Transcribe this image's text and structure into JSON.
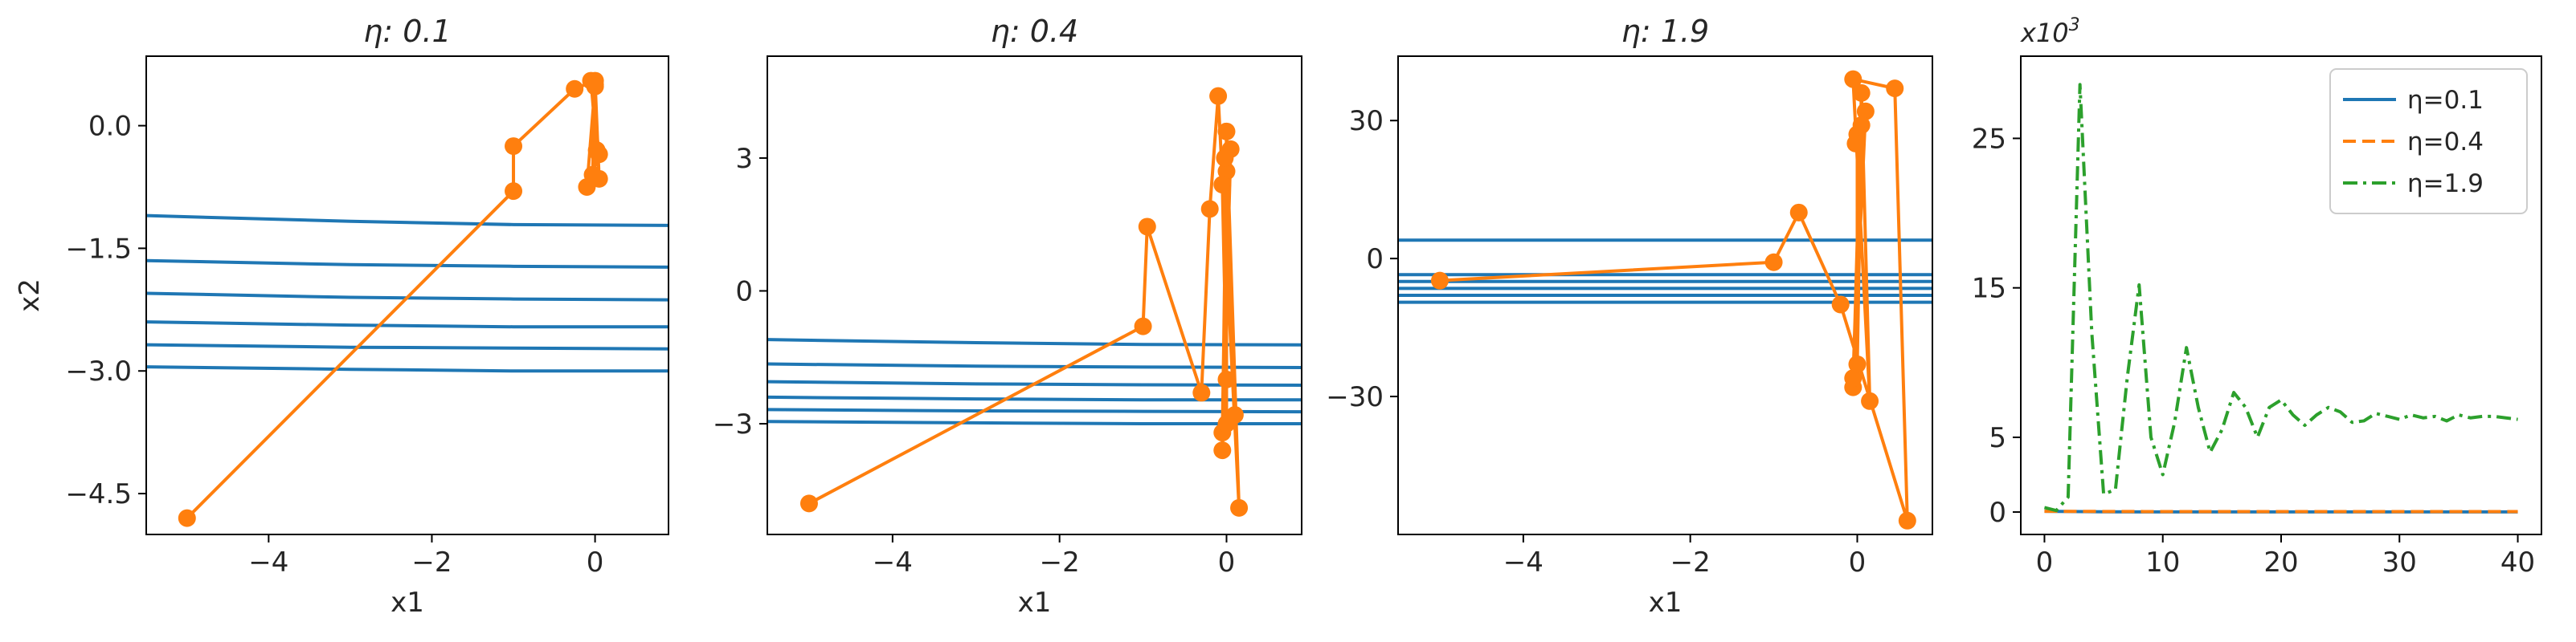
{
  "colors": {
    "contour": "#1f77b4",
    "trajectory": "#ff7f0e",
    "eta_0_1": "#1f77b4",
    "eta_0_4": "#ff7f0e",
    "eta_1_9": "#2ca02c",
    "axis": "#000000"
  },
  "chart_data": [
    {
      "type": "line",
      "title": "η: 0.1",
      "xlabel": "x1",
      "ylabel": "x2",
      "xlim": [
        -5.5,
        0.9
      ],
      "ylim": [
        -5.0,
        0.85
      ],
      "xticks": [
        -4,
        -2,
        0
      ],
      "xtick_labels": [
        "−4",
        "−2",
        "0"
      ],
      "yticks": [
        0.0,
        -1.5,
        -3.0,
        -4.5
      ],
      "ytick_labels": [
        "0.0",
        "−1.5",
        "−3.0",
        "−4.5"
      ],
      "contours": [
        {
          "x": [
            -5.5,
            -3,
            -1,
            0.9
          ],
          "y": [
            -1.1,
            -1.17,
            -1.21,
            -1.22
          ]
        },
        {
          "x": [
            -5.5,
            -3,
            -1,
            0.9
          ],
          "y": [
            -1.65,
            -1.7,
            -1.72,
            -1.73
          ]
        },
        {
          "x": [
            -5.5,
            -3,
            -1,
            0.9
          ],
          "y": [
            -2.05,
            -2.1,
            -2.12,
            -2.13
          ]
        },
        {
          "x": [
            -5.5,
            -3,
            -1,
            0.9
          ],
          "y": [
            -2.4,
            -2.44,
            -2.46,
            -2.46
          ]
        },
        {
          "x": [
            -5.5,
            -3,
            -1,
            0.9
          ],
          "y": [
            -2.68,
            -2.71,
            -2.72,
            -2.73
          ]
        },
        {
          "x": [
            -5.5,
            -3,
            -1,
            0.9
          ],
          "y": [
            -2.95,
            -2.98,
            -3.0,
            -3.0
          ]
        }
      ],
      "trajectory": {
        "x": [
          -5.0,
          -1.0,
          -1.0,
          -0.25,
          0.0,
          0.05,
          -0.05,
          0.05,
          -0.1,
          0.0,
          0.02,
          -0.03,
          0.0
        ],
        "y": [
          -4.8,
          -0.8,
          -0.25,
          0.45,
          0.55,
          -0.65,
          0.55,
          -0.35,
          -0.75,
          0.5,
          -0.3,
          -0.6,
          0.48
        ]
      }
    },
    {
      "type": "line",
      "title": "η: 0.4",
      "xlabel": "x1",
      "ylabel": "",
      "xlim": [
        -5.5,
        0.9
      ],
      "ylim": [
        -5.5,
        5.3
      ],
      "xticks": [
        -4,
        -2,
        0
      ],
      "xtick_labels": [
        "−4",
        "−2",
        "0"
      ],
      "yticks": [
        3,
        0,
        -3
      ],
      "ytick_labels": [
        "3",
        "0",
        "−3"
      ],
      "contours": [
        {
          "x": [
            -5.5,
            -3,
            -1,
            0.9
          ],
          "y": [
            -1.1,
            -1.17,
            -1.21,
            -1.22
          ]
        },
        {
          "x": [
            -5.5,
            -3,
            -1,
            0.9
          ],
          "y": [
            -1.65,
            -1.7,
            -1.72,
            -1.73
          ]
        },
        {
          "x": [
            -5.5,
            -3,
            -1,
            0.9
          ],
          "y": [
            -2.05,
            -2.1,
            -2.12,
            -2.13
          ]
        },
        {
          "x": [
            -5.5,
            -3,
            -1,
            0.9
          ],
          "y": [
            -2.4,
            -2.44,
            -2.46,
            -2.46
          ]
        },
        {
          "x": [
            -5.5,
            -3,
            -1,
            0.9
          ],
          "y": [
            -2.68,
            -2.71,
            -2.72,
            -2.73
          ]
        },
        {
          "x": [
            -5.5,
            -3,
            -1,
            0.9
          ],
          "y": [
            -2.95,
            -2.98,
            -3.0,
            -3.0
          ]
        }
      ],
      "trajectory": {
        "x": [
          -5.0,
          -1.0,
          -0.95,
          -0.3,
          -0.2,
          -0.1,
          0.15,
          0.0,
          -0.05,
          0.05,
          -0.05,
          0.0,
          0.0,
          -0.02,
          0.1,
          -0.05,
          0.0
        ],
        "y": [
          -4.8,
          -0.8,
          1.45,
          -2.3,
          1.85,
          4.4,
          -4.9,
          3.6,
          -3.6,
          3.2,
          -3.2,
          2.7,
          -3.0,
          3.0,
          -2.8,
          2.4,
          -2.0
        ]
      }
    },
    {
      "type": "line",
      "title": "η: 1.9",
      "xlabel": "x1",
      "ylabel": "",
      "xlim": [
        -5.5,
        0.9
      ],
      "ylim": [
        -60,
        44
      ],
      "xticks": [
        -4,
        -2,
        0
      ],
      "xtick_labels": [
        "−4",
        "−2",
        "0"
      ],
      "yticks": [
        30,
        0,
        -30
      ],
      "ytick_labels": [
        "30",
        "0",
        "−30"
      ],
      "contours": [
        {
          "x": [
            -5.5,
            0.9
          ],
          "y": [
            4,
            4
          ]
        },
        {
          "x": [
            -5.5,
            0.9
          ],
          "y": [
            -3.5,
            -3.5
          ]
        },
        {
          "x": [
            -5.5,
            0.9
          ],
          "y": [
            -5,
            -5
          ]
        },
        {
          "x": [
            -5.5,
            0.9
          ],
          "y": [
            -6.5,
            -6.5
          ]
        },
        {
          "x": [
            -5.5,
            0.9
          ],
          "y": [
            -8,
            -8
          ]
        },
        {
          "x": [
            -5.5,
            0.9
          ],
          "y": [
            -9.5,
            -9.5
          ]
        }
      ],
      "trajectory": {
        "x": [
          -5.0,
          -1.0,
          -0.7,
          -0.2,
          0.6,
          0.45,
          -0.05,
          0.15,
          0.05,
          -0.05,
          0.1,
          -0.05,
          0.05,
          0.0,
          0.0,
          -0.02
        ],
        "y": [
          -4.8,
          -0.8,
          10,
          -10,
          -57,
          37,
          39,
          -31,
          36,
          -28,
          32,
          -26,
          29,
          -23,
          27,
          25
        ]
      }
    },
    {
      "type": "line",
      "title": "",
      "xlabel": "",
      "ylabel": "",
      "offset_label": "x10",
      "offset_exponent": "3",
      "xlim": [
        -2,
        42
      ],
      "ylim": [
        -1.5,
        30.5
      ],
      "xticks": [
        0,
        10,
        20,
        30,
        40
      ],
      "xtick_labels": [
        "0",
        "10",
        "20",
        "30",
        "40"
      ],
      "yticks": [
        0,
        5,
        15,
        25
      ],
      "ytick_labels": [
        "0",
        "5",
        "15",
        "25"
      ],
      "legend_position": "upper right",
      "series": [
        {
          "name": "η=0.1",
          "style": "solid",
          "x": [
            0,
            5,
            10,
            15,
            20,
            25,
            30,
            35,
            40
          ],
          "y": [
            0.05,
            0.02,
            0.01,
            0.01,
            0.01,
            0.01,
            0.01,
            0.01,
            0.01
          ]
        },
        {
          "name": "η=0.4",
          "style": "dashed",
          "x": [
            0,
            5,
            10,
            15,
            20,
            25,
            30,
            35,
            40
          ],
          "y": [
            0.05,
            0.04,
            0.03,
            0.03,
            0.03,
            0.03,
            0.03,
            0.03,
            0.03
          ]
        },
        {
          "name": "η=1.9",
          "style": "dashdot",
          "x": [
            0,
            1,
            2,
            3,
            4,
            5,
            6,
            7,
            8,
            9,
            10,
            11,
            12,
            13,
            14,
            15,
            16,
            17,
            18,
            19,
            20,
            21,
            22,
            23,
            24,
            25,
            26,
            27,
            28,
            29,
            30,
            31,
            32,
            33,
            34,
            35,
            36,
            37,
            38,
            39,
            40
          ],
          "y": [
            0.3,
            0.1,
            1.0,
            28.6,
            12.0,
            1.2,
            1.5,
            9.0,
            15.2,
            5.0,
            2.5,
            6.0,
            11.0,
            7.0,
            4.0,
            5.5,
            8.0,
            7.0,
            5.0,
            7.0,
            7.5,
            6.5,
            5.8,
            6.5,
            7.0,
            6.7,
            6.0,
            6.1,
            6.6,
            6.4,
            6.2,
            6.5,
            6.3,
            6.4,
            6.1,
            6.5,
            6.3,
            6.4,
            6.4,
            6.3,
            6.2
          ]
        }
      ]
    }
  ]
}
